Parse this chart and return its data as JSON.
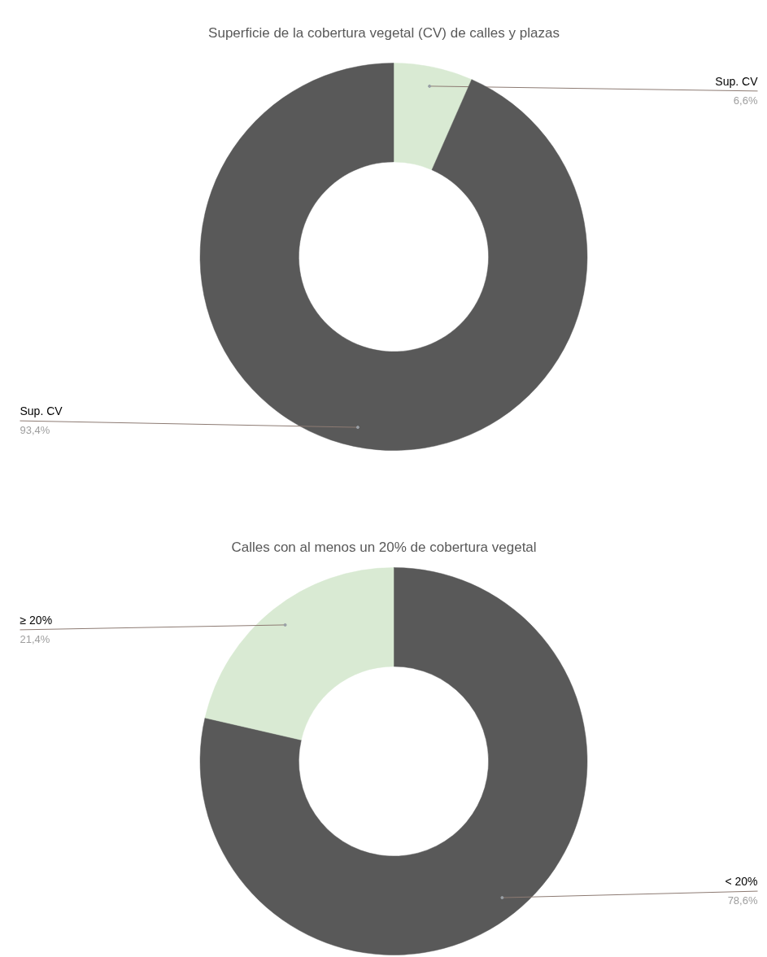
{
  "chart_data": [
    {
      "type": "donut",
      "title": "Superficie de la cobertura vegetal (CV) de calles y plazas",
      "categories": [
        "Sup. CV",
        "Sup. CV"
      ],
      "values": [
        6.6,
        93.4
      ],
      "colors": [
        "#d9ead3",
        "#595959"
      ],
      "value_labels": [
        "6,6%",
        "93,4%"
      ]
    },
    {
      "type": "donut",
      "title": "Calles con al menos un 20% de cobertura vegetal",
      "categories": [
        "< 20%",
        "≥ 20%"
      ],
      "values": [
        78.6,
        21.4
      ],
      "colors": [
        "#595959",
        "#d9ead3"
      ],
      "value_labels": [
        "78,6%",
        "21,4%"
      ]
    }
  ]
}
